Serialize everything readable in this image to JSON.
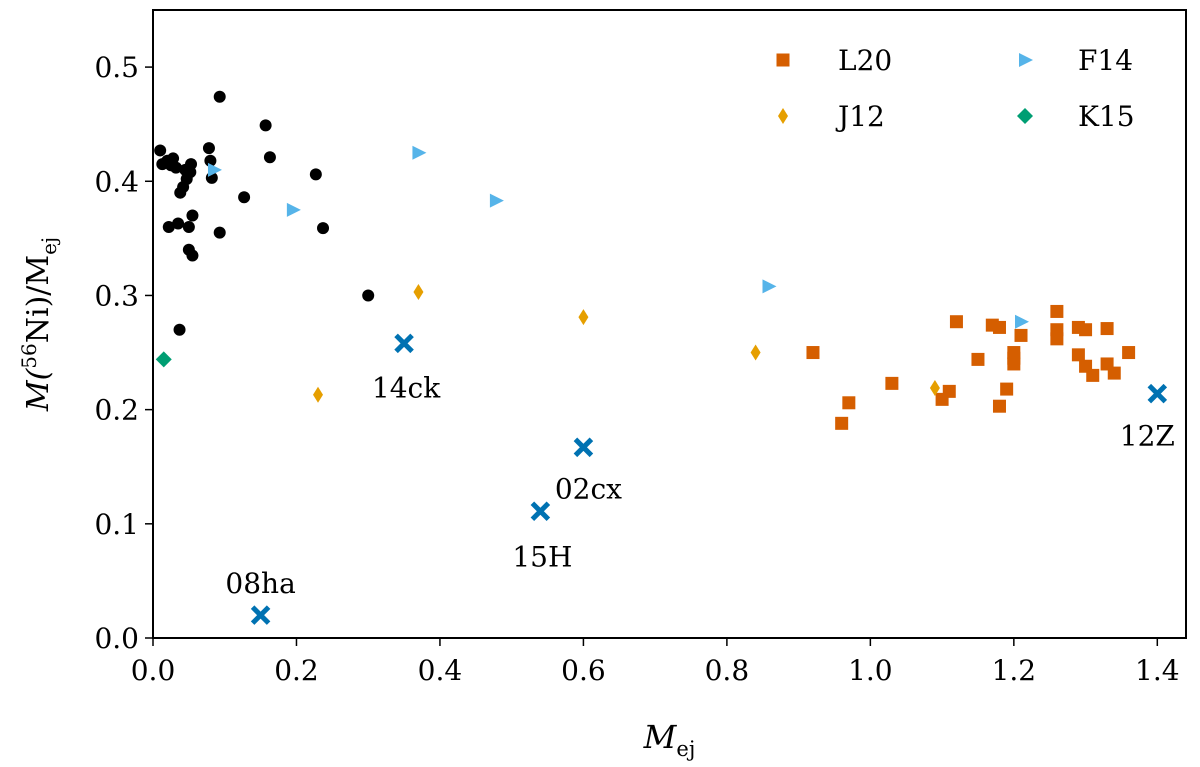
{
  "chart_data": {
    "type": "scatter",
    "xlabel_main": "M",
    "xlabel_sub": "ej",
    "ylabel_main": "M(",
    "ylabel_sup": "56",
    "ylabel_mid": "Ni)/M",
    "ylabel_sub": "ej",
    "xlim": [
      0.0,
      1.44
    ],
    "ylim": [
      0.0,
      0.55
    ],
    "x_ticks": [
      0.0,
      0.2,
      0.4,
      0.6,
      0.8,
      1.0,
      1.2,
      1.4
    ],
    "y_ticks": [
      0.0,
      0.1,
      0.2,
      0.3,
      0.4,
      0.5
    ],
    "x_tick_labels": [
      "0.0",
      "0.2",
      "0.4",
      "0.6",
      "0.8",
      "1.0",
      "1.2",
      "1.4"
    ],
    "y_tick_labels": [
      "0.0",
      "0.1",
      "0.2",
      "0.3",
      "0.4",
      "0.5"
    ],
    "grid": false,
    "legend_position": "top-right",
    "series": [
      {
        "name": "",
        "marker": "circle",
        "color": "#000000",
        "in_legend": false,
        "points": [
          [
            0.01,
            0.427
          ],
          [
            0.013,
            0.415
          ],
          [
            0.02,
            0.418
          ],
          [
            0.025,
            0.414
          ],
          [
            0.028,
            0.42
          ],
          [
            0.032,
            0.412
          ],
          [
            0.022,
            0.36
          ],
          [
            0.035,
            0.363
          ],
          [
            0.038,
            0.39
          ],
          [
            0.042,
            0.395
          ],
          [
            0.045,
            0.41
          ],
          [
            0.047,
            0.402
          ],
          [
            0.05,
            0.36
          ],
          [
            0.05,
            0.34
          ],
          [
            0.052,
            0.408
          ],
          [
            0.053,
            0.415
          ],
          [
            0.055,
            0.335
          ],
          [
            0.055,
            0.37
          ],
          [
            0.078,
            0.429
          ],
          [
            0.08,
            0.418
          ],
          [
            0.082,
            0.403
          ],
          [
            0.093,
            0.474
          ],
          [
            0.093,
            0.355
          ],
          [
            0.127,
            0.386
          ],
          [
            0.157,
            0.449
          ],
          [
            0.163,
            0.421
          ],
          [
            0.227,
            0.406
          ],
          [
            0.237,
            0.359
          ],
          [
            0.3,
            0.3
          ],
          [
            0.037,
            0.27
          ]
        ]
      },
      {
        "name": "L20",
        "marker": "square",
        "color": "#d55e00",
        "in_legend": true,
        "points": [
          [
            0.92,
            0.25
          ],
          [
            0.96,
            0.188
          ],
          [
            0.97,
            0.206
          ],
          [
            1.03,
            0.223
          ],
          [
            1.1,
            0.209
          ],
          [
            1.11,
            0.216
          ],
          [
            1.12,
            0.277
          ],
          [
            1.15,
            0.244
          ],
          [
            1.17,
            0.274
          ],
          [
            1.18,
            0.272
          ],
          [
            1.18,
            0.203
          ],
          [
            1.19,
            0.218
          ],
          [
            1.2,
            0.25
          ],
          [
            1.2,
            0.245
          ],
          [
            1.2,
            0.24
          ],
          [
            1.21,
            0.265
          ],
          [
            1.26,
            0.286
          ],
          [
            1.26,
            0.27
          ],
          [
            1.26,
            0.262
          ],
          [
            1.29,
            0.272
          ],
          [
            1.29,
            0.248
          ],
          [
            1.3,
            0.27
          ],
          [
            1.3,
            0.238
          ],
          [
            1.31,
            0.23
          ],
          [
            1.33,
            0.271
          ],
          [
            1.33,
            0.24
          ],
          [
            1.34,
            0.232
          ],
          [
            1.36,
            0.25
          ]
        ]
      },
      {
        "name": "F14",
        "marker": "triangle-right",
        "color": "#56b4e9",
        "in_legend": true,
        "points": [
          [
            0.085,
            0.41
          ],
          [
            0.195,
            0.375
          ],
          [
            0.37,
            0.425
          ],
          [
            0.478,
            0.383
          ],
          [
            0.858,
            0.308
          ],
          [
            1.21,
            0.277
          ]
        ]
      },
      {
        "name": "J12",
        "marker": "thin-diamond",
        "color": "#e69f00",
        "in_legend": true,
        "points": [
          [
            0.23,
            0.213
          ],
          [
            0.37,
            0.303
          ],
          [
            0.6,
            0.281
          ],
          [
            0.84,
            0.25
          ],
          [
            1.09,
            0.219
          ]
        ]
      },
      {
        "name": "K15",
        "marker": "diamond",
        "color": "#009e73",
        "in_legend": true,
        "points": [
          [
            0.015,
            0.244
          ]
        ]
      },
      {
        "name": "",
        "marker": "x",
        "color": "#0072b2",
        "in_legend": false,
        "points": [
          [
            0.15,
            0.02
          ],
          [
            0.35,
            0.258
          ],
          [
            0.54,
            0.111
          ],
          [
            0.6,
            0.167
          ],
          [
            1.4,
            0.214
          ]
        ]
      }
    ],
    "annotations": [
      {
        "text": "08ha",
        "x": 0.15,
        "y": 0.02,
        "position": "above"
      },
      {
        "text": "14ck",
        "x": 0.35,
        "y": 0.258,
        "position": "below"
      },
      {
        "text": "15H",
        "x": 0.54,
        "y": 0.111,
        "position": "below"
      },
      {
        "text": "02cx",
        "x": 0.6,
        "y": 0.167,
        "position": "below"
      },
      {
        "text": "12Z",
        "x": 1.4,
        "y": 0.214,
        "position": "below"
      }
    ]
  }
}
